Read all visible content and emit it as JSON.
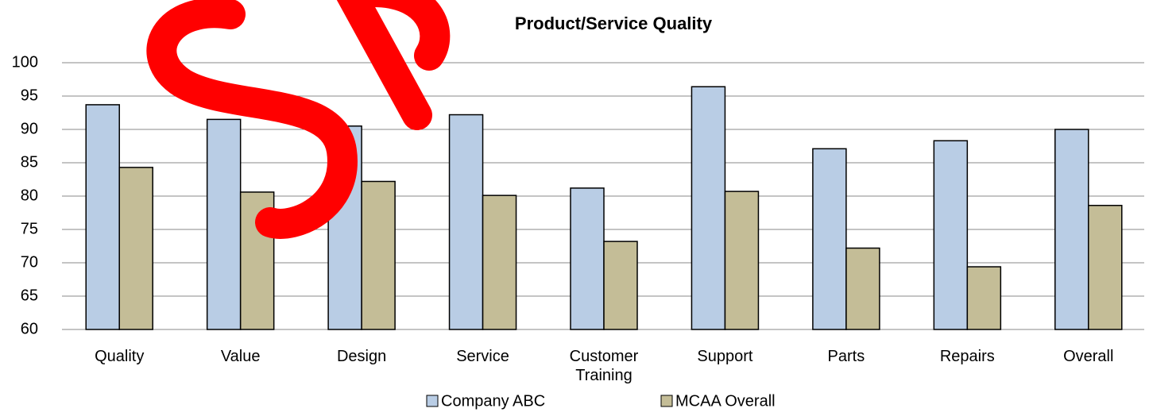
{
  "chart_data": {
    "type": "bar",
    "title": "Product/Service Quality",
    "categories": [
      "Quality",
      "Value",
      "Design",
      "Service",
      "Customer Training",
      "Support",
      "Parts",
      "Repairs",
      "Overall"
    ],
    "series": [
      {
        "name": "Company ABC",
        "color": "#b9cde5",
        "values": [
          93.7,
          91.5,
          90.5,
          92.2,
          81.2,
          96.4,
          87.1,
          88.3,
          90.0
        ]
      },
      {
        "name": "MCAA Overall",
        "color": "#c4bd97",
        "values": [
          84.3,
          80.6,
          82.2,
          80.1,
          73.2,
          80.7,
          72.2,
          69.4,
          78.6
        ]
      }
    ],
    "ylim": [
      60,
      100
    ],
    "yticks": [
      60,
      65,
      70,
      75,
      80,
      85,
      90,
      95,
      100
    ],
    "grid": true,
    "legend": "bottom"
  }
}
